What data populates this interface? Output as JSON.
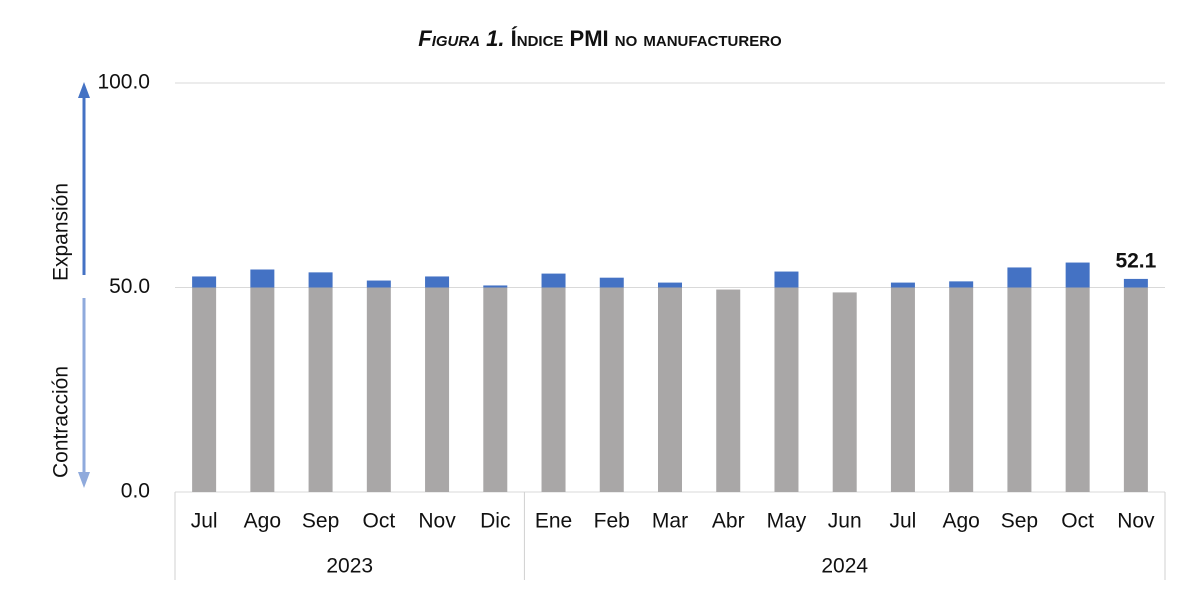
{
  "chart_data": {
    "type": "bar",
    "title_prefix": "Figura 1.",
    "title": "Índice PMI no manufacturero",
    "annotations": {
      "up": "Expansión",
      "down": "Contracción"
    },
    "groups": [
      {
        "label": "2023",
        "categories": [
          "Jul",
          "Ago",
          "Sep",
          "Oct",
          "Nov",
          "Dic"
        ]
      },
      {
        "label": "2024",
        "categories": [
          "Ene",
          "Feb",
          "Mar",
          "Abr",
          "May",
          "Jun",
          "Jul",
          "Ago",
          "Sep",
          "Oct",
          "Nov"
        ]
      }
    ],
    "values": [
      52.7,
      54.4,
      53.7,
      51.7,
      52.7,
      50.5,
      53.4,
      52.4,
      51.2,
      49.5,
      53.9,
      48.8,
      51.2,
      51.5,
      54.9,
      56.1,
      52.1
    ],
    "color_below": "#a9a7a7",
    "color_above": "#4472c4",
    "show_last_value_label": true,
    "ylim": [
      0,
      100
    ],
    "yticks": [
      {
        "value": 0,
        "label": "0.0"
      },
      {
        "value": 50,
        "label": "50.0"
      },
      {
        "value": 100,
        "label": "100.0"
      }
    ],
    "grid": true
  }
}
